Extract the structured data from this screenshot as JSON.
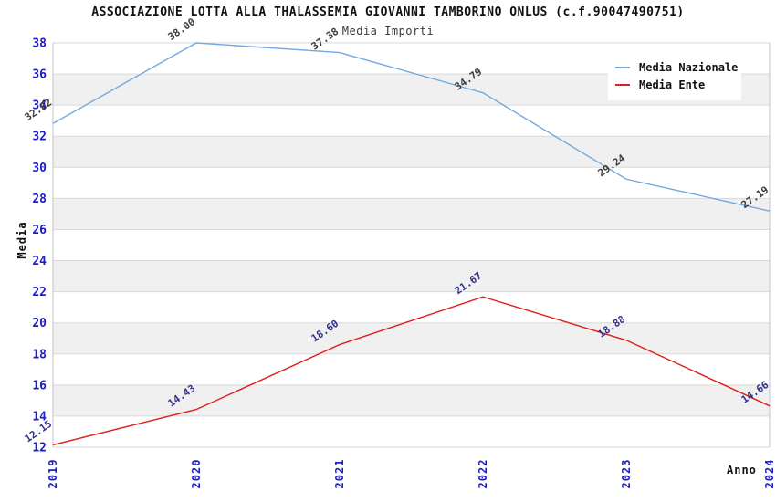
{
  "header": {
    "title": "ASSOCIAZIONE LOTTA ALLA THALASSEMIA GIOVANNI TAMBORINO ONLUS (c.f.90047490751)",
    "subtitle": "Media Importi"
  },
  "legend": {
    "items": [
      {
        "label": "Media Nazionale"
      },
      {
        "label": "Media Ente"
      }
    ]
  },
  "chart_data": {
    "type": "line",
    "title": "Media Importi",
    "xlabel": "Anno",
    "ylabel": "Media",
    "categories": [
      "2019",
      "2020",
      "2021",
      "2022",
      "2023",
      "2024"
    ],
    "series": [
      {
        "name": "Media Nazionale",
        "color": "#74a9e0",
        "label_color": "#3c3c3c",
        "values": [
          32.82,
          38.0,
          37.38,
          34.79,
          29.24,
          27.19
        ]
      },
      {
        "name": "Media Ente",
        "color": "#e11d1d",
        "label_color": "#32328c",
        "values": [
          12.15,
          14.43,
          18.6,
          21.67,
          18.88,
          14.66
        ]
      }
    ],
    "ylim": [
      12,
      38
    ],
    "ytick_step": 2,
    "grid": true,
    "legend_position": "top-right",
    "axis_tick_color": "#1c1ccc",
    "gridline_color": "#d9d9d9",
    "axis_line_color": "#c4c4c4",
    "band_colors": [
      "#ffffff",
      "#f0f0f0"
    ]
  }
}
